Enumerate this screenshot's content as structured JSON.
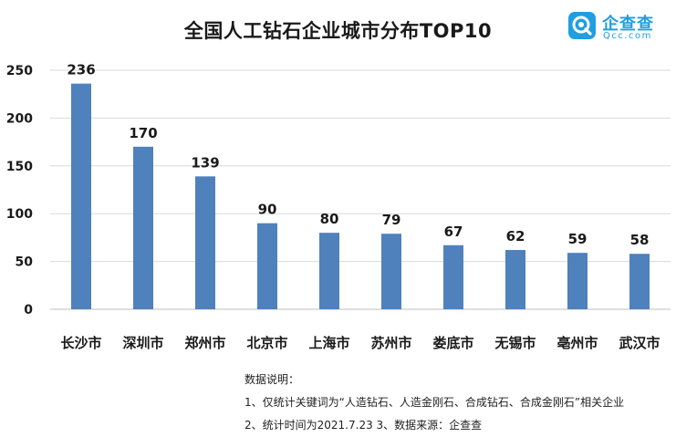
{
  "chart_data": {
    "type": "bar",
    "title": "全国人工钻石企业城市分布TOP10",
    "categories": [
      "长沙市",
      "深圳市",
      "郑州市",
      "北京市",
      "上海市",
      "苏州市",
      "娄底市",
      "无锡市",
      "亳州市",
      "武汉市"
    ],
    "values": [
      236,
      170,
      139,
      90,
      80,
      79,
      67,
      62,
      59,
      58
    ],
    "xlabel": "",
    "ylabel": "",
    "ylim": [
      0,
      250
    ],
    "yticks": [
      0,
      50,
      100,
      150,
      200,
      250
    ],
    "grid": true,
    "legend": "none",
    "bar_color": "#4f81bd"
  },
  "logo": {
    "name": "企查查",
    "domain": "Qcc.com",
    "color": "#1f9fe0"
  },
  "notes": {
    "heading": "数据说明：",
    "line1": "1、仅统计关键词为“人造钻石、人造金刚石、合成钻石、合成金刚石”相关企业",
    "line2": "2、统计时间为2021.7.23  3、数据来源：企查查"
  }
}
